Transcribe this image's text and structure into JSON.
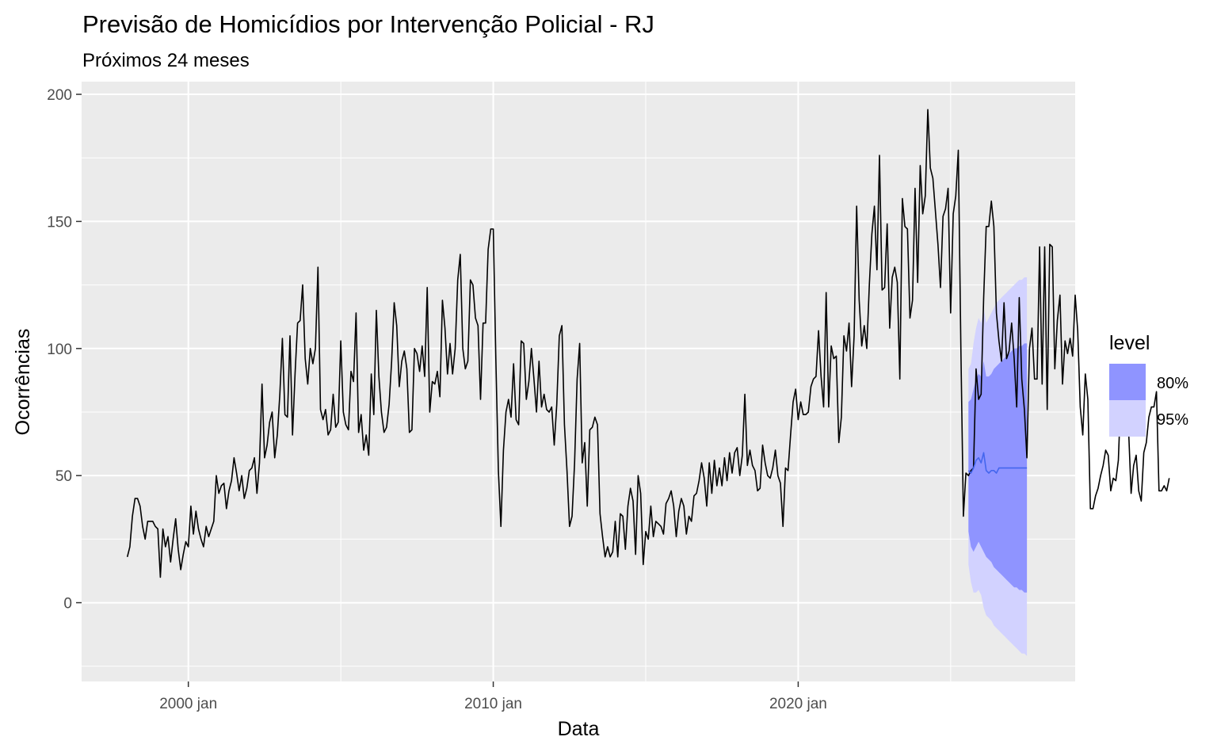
{
  "chart_data": {
    "type": "line",
    "title": "Previsão de Homicídios por Intervenção Policial - RJ",
    "subtitle": "Próximos 24 meses",
    "xlabel": "Data",
    "ylabel": "Ocorrências",
    "x_ticks": [
      {
        "label": "2000 jan",
        "value": "2000-01"
      },
      {
        "label": "2010 jan",
        "value": "2010-01"
      },
      {
        "label": "2020 jan",
        "value": "2020-01"
      }
    ],
    "y_ticks": [
      0,
      50,
      100,
      150,
      200
    ],
    "xlim": [
      "1996-07",
      "2029-02"
    ],
    "ylim": [
      -31,
      205
    ],
    "grid": true,
    "legend": {
      "title": "level",
      "position": "right",
      "items": [
        {
          "label": "80%",
          "color": "#8f94ff"
        },
        {
          "label": "95%",
          "color": "#d2d2ff"
        }
      ]
    },
    "colors": {
      "panel": "#ebebeb",
      "grid": "#ffffff",
      "observed": "#000000",
      "forecast": "#4466ee",
      "band80": "#8f94ff",
      "band95": "#d2d2ff"
    },
    "series": [
      {
        "role": "observed",
        "start": "1998-01",
        "step": "month",
        "values": [
          18,
          22,
          34,
          41,
          41,
          38,
          30,
          25,
          32,
          32,
          32,
          30,
          29,
          10,
          29,
          22,
          26,
          16,
          25,
          33,
          21,
          13,
          19,
          24,
          22,
          38,
          27,
          36,
          29,
          25,
          22,
          30,
          26,
          29,
          32,
          50,
          43,
          46,
          47,
          37,
          44,
          48,
          57,
          51,
          44,
          50,
          41,
          45,
          52,
          53,
          57,
          43,
          55,
          86,
          57,
          62,
          71,
          75,
          57,
          66,
          82,
          104,
          74,
          73,
          105,
          66,
          90,
          110,
          111,
          125,
          96,
          86,
          100,
          94,
          100,
          132,
          76,
          72,
          76,
          66,
          68,
          82,
          69,
          71,
          103,
          75,
          70,
          68,
          91,
          87,
          114,
          67,
          74,
          60,
          66,
          58,
          90,
          74,
          115,
          89,
          75,
          67,
          69,
          78,
          95,
          118,
          109,
          85,
          95,
          99,
          92,
          67,
          68,
          100,
          98,
          91,
          101,
          89,
          124,
          75,
          87,
          86,
          91,
          81,
          119,
          108,
          90,
          102,
          90,
          100,
          127,
          137,
          100,
          92,
          95,
          127,
          125,
          112,
          109,
          80,
          110,
          110,
          139,
          147,
          147,
          96,
          52,
          30,
          60,
          75,
          80,
          73,
          94,
          72,
          70,
          103,
          102,
          80,
          87,
          100,
          88,
          75,
          95,
          77,
          82,
          76,
          75,
          77,
          62,
          78,
          105,
          109,
          70,
          52,
          30,
          34,
          55,
          88,
          102,
          55,
          63,
          38,
          68,
          69,
          73,
          70,
          35,
          26,
          18,
          22,
          18,
          20,
          32,
          18,
          35,
          34,
          21,
          38,
          45,
          40,
          19,
          50,
          43,
          15,
          28,
          25,
          38,
          26,
          32,
          31,
          30,
          27,
          39,
          41,
          44,
          38,
          26,
          36,
          41,
          38,
          27,
          34,
          32,
          42,
          43,
          48,
          55,
          49,
          38,
          55,
          43,
          56,
          46,
          53,
          46,
          57,
          48,
          59,
          51,
          59,
          61,
          50,
          58,
          82,
          54,
          60,
          54,
          52,
          44,
          45,
          62,
          55,
          50,
          49,
          53,
          60,
          50,
          47,
          30,
          53,
          52,
          66,
          79,
          84,
          72,
          79,
          74,
          74,
          75,
          85,
          88,
          89,
          107,
          89,
          77,
          122,
          77,
          101,
          96,
          97,
          63,
          73,
          105,
          99,
          110,
          85,
          105,
          156,
          119,
          101,
          109,
          100,
          125,
          145,
          156,
          131,
          176,
          123,
          124,
          149,
          108,
          128,
          132,
          126,
          88,
          159,
          148,
          147,
          112,
          119,
          163,
          126,
          172,
          153,
          160,
          194,
          171,
          167,
          154,
          141,
          124,
          152,
          155,
          163,
          114,
          153,
          160,
          178,
          101,
          34,
          51,
          50,
          52,
          53,
          92,
          80,
          82,
          120,
          148,
          148,
          158,
          148,
          114,
          103,
          95,
          118,
          96,
          99,
          110,
          96,
          77,
          120,
          88,
          76,
          57,
          100,
          108,
          88,
          88,
          140,
          86,
          140,
          76,
          141,
          140,
          92,
          111,
          121,
          86,
          103,
          98,
          104,
          97,
          121,
          107,
          77,
          66,
          90,
          80,
          37,
          37,
          42,
          45,
          50,
          54,
          60,
          58,
          44,
          49,
          48,
          56,
          83,
          70,
          79,
          68,
          43,
          54,
          58,
          44,
          40,
          59,
          63,
          73,
          77,
          77,
          83,
          44,
          44,
          46,
          44,
          49
        ]
      },
      {
        "role": "forecast",
        "start": "2025-08",
        "step": "month",
        "values": [
          52,
          51,
          53,
          56,
          57,
          55,
          59,
          52,
          51,
          52,
          52,
          51,
          53,
          53,
          53,
          53,
          53,
          53,
          53,
          53,
          53,
          53,
          53,
          53
        ],
        "lo80": [
          28,
          22,
          20,
          22,
          24,
          22,
          20,
          18,
          17,
          16,
          14,
          13,
          12,
          11,
          10,
          9,
          8,
          7,
          6,
          6,
          5,
          5,
          4,
          4
        ],
        "hi80": [
          79,
          80,
          84,
          88,
          90,
          89,
          95,
          89,
          89,
          90,
          92,
          93,
          94,
          95,
          96,
          97,
          98,
          99,
          100,
          100,
          101,
          101,
          102,
          102
        ],
        "lo95": [
          15,
          8,
          4,
          4,
          5,
          3,
          -2,
          -5,
          -6,
          -7,
          -9,
          -10,
          -11,
          -12,
          -13,
          -14,
          -15,
          -16,
          -17,
          -18,
          -19,
          -20,
          -20,
          -21
        ],
        "hi95": [
          92,
          94,
          102,
          108,
          112,
          110,
          116,
          110,
          112,
          114,
          116,
          118,
          119,
          120,
          121,
          122,
          123,
          124,
          125,
          126,
          127,
          127,
          128,
          128
        ]
      }
    ]
  }
}
